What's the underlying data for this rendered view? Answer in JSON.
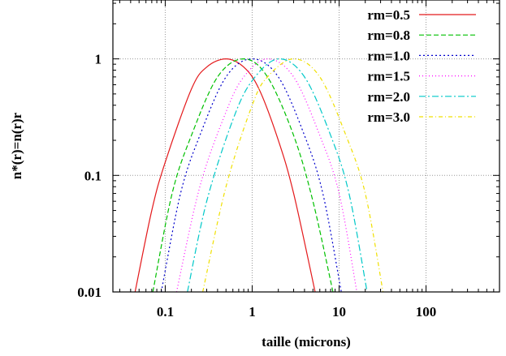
{
  "chart_data": {
    "type": "line",
    "title": "",
    "xlabel": "taille (microns)",
    "ylabel": "n*(r)=n(r)r",
    "xscale": "log",
    "yscale": "log",
    "xlim": [
      0.025,
      700
    ],
    "ylim": [
      0.01,
      3.2
    ],
    "x_ticks": [
      0.1,
      1,
      10,
      100
    ],
    "x_tick_labels": [
      "0.1",
      "1",
      "10",
      "100"
    ],
    "y_ticks": [
      0.01,
      0.1,
      1
    ],
    "y_tick_labels": [
      "0.01",
      "0.1",
      "1"
    ],
    "grid": true,
    "legend_position": "top-right",
    "series": [
      {
        "name": "rm=0.5",
        "rm": 0.5,
        "color": "#e41a1c",
        "dash": "none",
        "x": [
          0.045,
          0.07,
          0.1,
          0.2,
          0.3,
          0.5,
          0.8,
          1.2,
          2,
          3,
          5.3
        ],
        "y": [
          0.01,
          0.05,
          0.13,
          0.55,
          0.85,
          1.0,
          0.85,
          0.55,
          0.2,
          0.07,
          0.01
        ]
      },
      {
        "name": "rm=0.8",
        "rm": 0.8,
        "color": "#00c000",
        "dash": "6,3",
        "x": [
          0.072,
          0.12,
          0.2,
          0.4,
          0.8,
          1.5,
          3,
          5,
          8.5
        ],
        "y": [
          0.01,
          0.07,
          0.22,
          0.7,
          1.0,
          0.7,
          0.22,
          0.06,
          0.01
        ]
      },
      {
        "name": "rm=1.0",
        "rm": 1.0,
        "color": "#0000cc",
        "dash": "2,3",
        "x": [
          0.09,
          0.15,
          0.25,
          0.5,
          1,
          2,
          4,
          6.5,
          10.6
        ],
        "y": [
          0.01,
          0.07,
          0.22,
          0.7,
          1.0,
          0.7,
          0.22,
          0.07,
          0.01
        ]
      },
      {
        "name": "rm=1.5",
        "rm": 1.5,
        "color": "#ff00ff",
        "dash": "1,3",
        "x": [
          0.135,
          0.25,
          0.5,
          0.8,
          1.5,
          3,
          6,
          10,
          16
        ],
        "y": [
          0.01,
          0.08,
          0.35,
          0.7,
          1.0,
          0.7,
          0.22,
          0.07,
          0.01
        ]
      },
      {
        "name": "rm=2.0",
        "rm": 2.0,
        "color": "#00c8c8",
        "dash": "8,3,2,3",
        "x": [
          0.18,
          0.3,
          0.6,
          1,
          2,
          4,
          8,
          13,
          21
        ],
        "y": [
          0.01,
          0.06,
          0.3,
          0.65,
          1.0,
          0.7,
          0.22,
          0.07,
          0.01
        ]
      },
      {
        "name": "rm=3.0",
        "rm": 3.0,
        "color": "#f0e000",
        "dash": "5,3,1,3",
        "x": [
          0.27,
          0.5,
          1,
          1.5,
          3,
          6,
          12,
          20,
          32
        ],
        "y": [
          0.01,
          0.08,
          0.4,
          0.7,
          1.0,
          0.7,
          0.22,
          0.07,
          0.01
        ]
      }
    ]
  }
}
